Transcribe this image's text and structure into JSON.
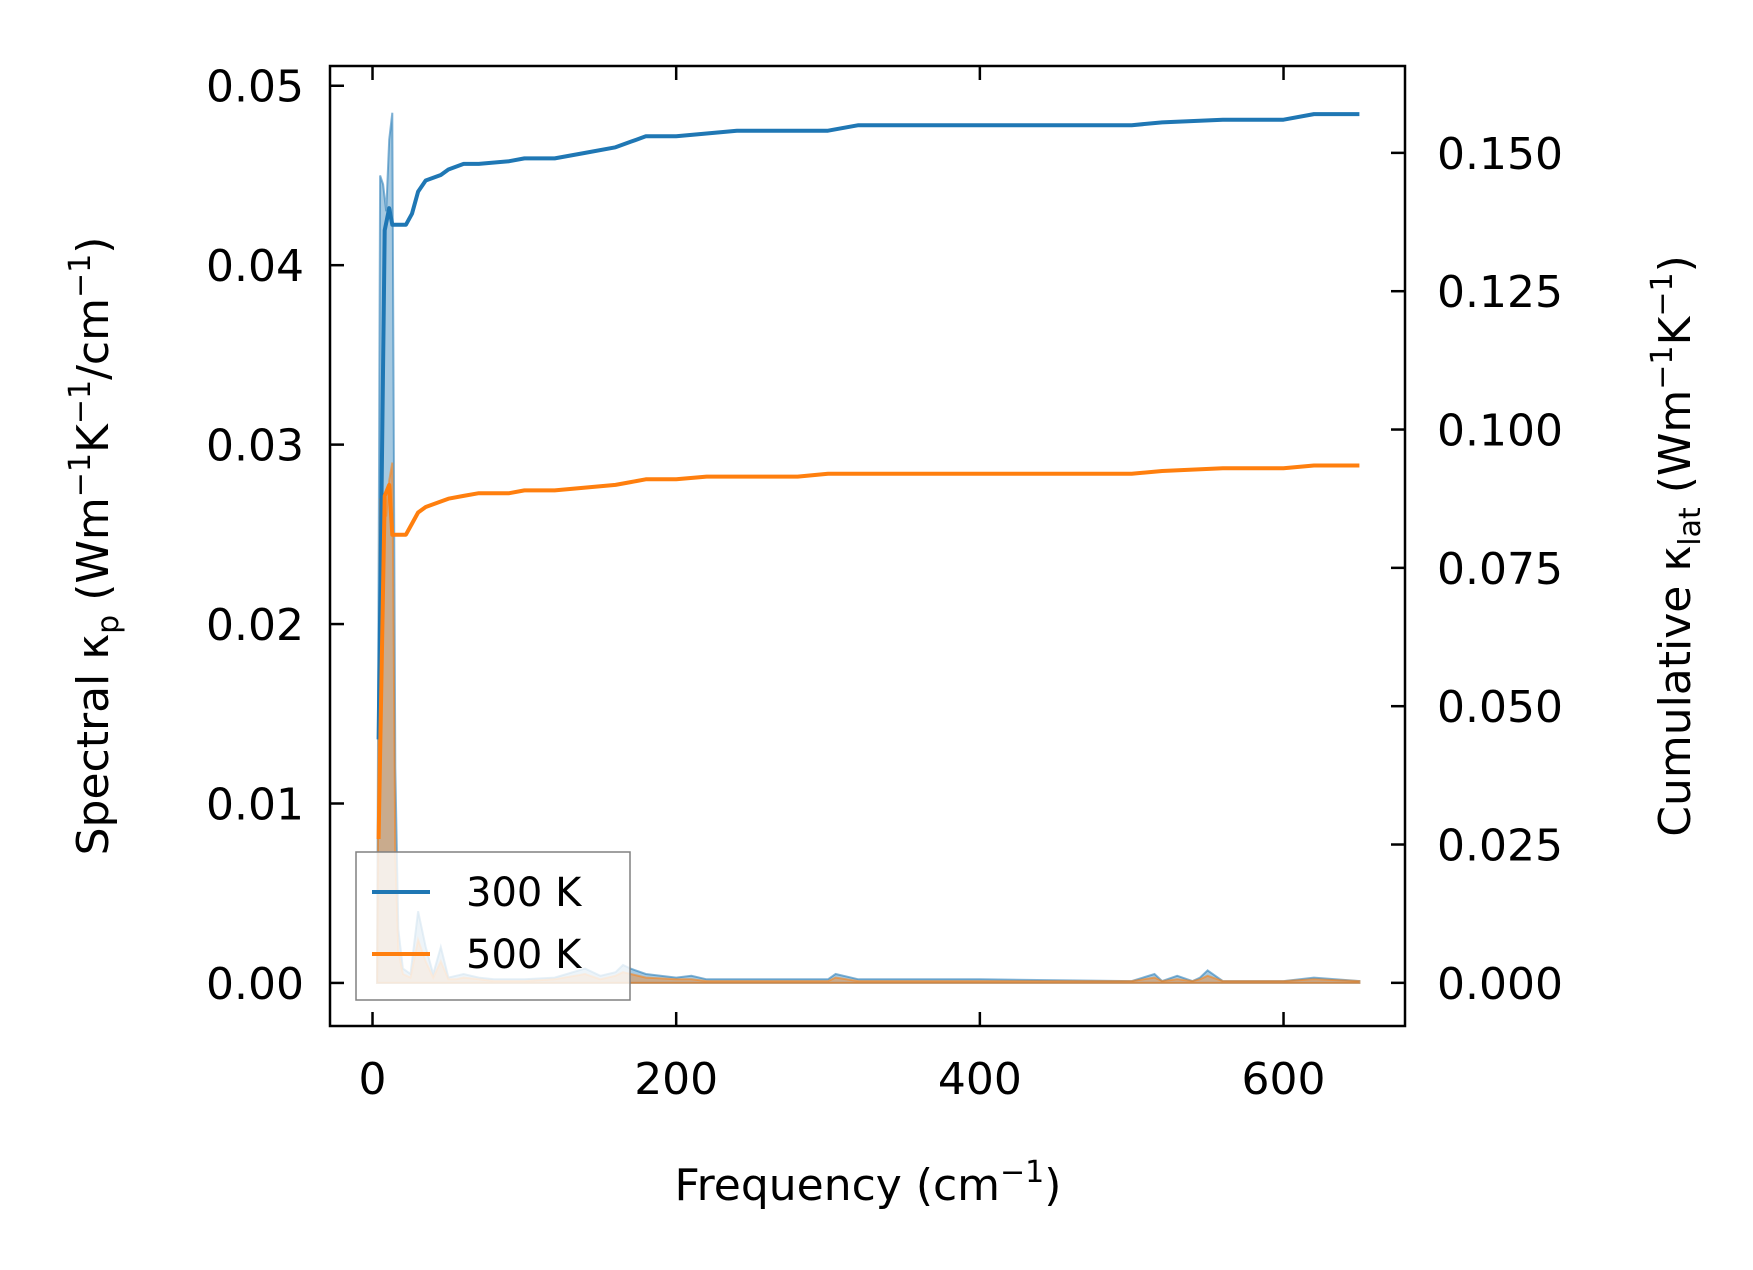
{
  "chart_data": {
    "type": "line",
    "xlabel_main": "Frequency (cm",
    "xlabel_sup": "−1",
    "xlabel_end": ")",
    "ylabel_left": {
      "pre": "Spectral κ",
      "sub": "p",
      "mid1": " (Wm",
      "sup1": "−1",
      "mid2": "K",
      "sup2": "−1",
      "mid3": "/cm",
      "sup3": "−1",
      "end": ")"
    },
    "ylabel_right": {
      "pre": "Cumulative κ",
      "sub": "lat",
      "mid1": " (Wm",
      "sup1": "−1",
      "mid2": "K",
      "sup2": "−1",
      "end": ")"
    },
    "xlim": [
      -28,
      680
    ],
    "ylim_left": [
      -0.0024,
      0.0511
    ],
    "ylim_right": [
      -0.0078,
      0.1657
    ],
    "xticks": [
      0,
      200,
      400,
      600
    ],
    "xtick_labels": [
      "0",
      "200",
      "400",
      "600"
    ],
    "yticks_left": [
      0.0,
      0.01,
      0.02,
      0.03,
      0.04,
      0.05
    ],
    "ytick_labels_left": [
      "0.00",
      "0.01",
      "0.02",
      "0.03",
      "0.04",
      "0.05"
    ],
    "yticks_right": [
      0.0,
      0.025,
      0.05,
      0.075,
      0.1,
      0.125,
      0.15
    ],
    "ytick_labels_right": [
      "0.000",
      "0.025",
      "0.050",
      "0.075",
      "0.100",
      "0.125",
      "0.150"
    ],
    "legend_position": "lower-left",
    "series": [
      {
        "name": "300 K",
        "color": "#1f77b4",
        "cumulative": {
          "x": [
            4,
            8,
            11,
            13,
            15,
            22,
            26,
            30,
            35,
            45,
            50,
            60,
            70,
            90,
            100,
            120,
            140,
            160,
            170,
            180,
            200,
            220,
            240,
            280,
            300,
            320,
            500,
            520,
            560,
            600,
            620,
            650
          ],
          "y": [
            0.044,
            0.136,
            0.14,
            0.137,
            0.137,
            0.137,
            0.139,
            0.143,
            0.145,
            0.146,
            0.147,
            0.148,
            0.148,
            0.1485,
            0.149,
            0.149,
            0.15,
            0.151,
            0.152,
            0.153,
            0.153,
            0.1535,
            0.154,
            0.154,
            0.154,
            0.155,
            0.155,
            0.1555,
            0.156,
            0.156,
            0.157,
            0.157
          ]
        },
        "spectral": {
          "x": [
            3,
            5,
            7,
            9,
            11,
            13,
            15,
            17,
            20,
            25,
            30,
            35,
            40,
            45,
            50,
            55,
            60,
            70,
            80,
            100,
            120,
            140,
            150,
            160,
            165,
            170,
            180,
            200,
            210,
            220,
            250,
            300,
            305,
            320,
            400,
            500,
            515,
            520,
            530,
            540,
            545,
            550,
            560,
            600,
            620,
            650
          ],
          "y": [
            0.0,
            0.045,
            0.0445,
            0.043,
            0.047,
            0.0485,
            0.012,
            0.003,
            0.0008,
            0.0005,
            0.004,
            0.002,
            0.0005,
            0.002,
            0.0003,
            0.0004,
            0.0005,
            0.0003,
            0.0002,
            0.0002,
            0.0003,
            0.0008,
            0.0004,
            0.0006,
            0.001,
            0.0008,
            0.0005,
            0.0003,
            0.0004,
            0.0002,
            0.0002,
            0.0002,
            0.0005,
            0.0002,
            0.0002,
            0.0001,
            0.0005,
            0.0001,
            0.0004,
            0.0001,
            0.0003,
            0.0007,
            0.0001,
            0.0001,
            0.0003,
            0.0001
          ]
        }
      },
      {
        "name": "500 K",
        "color": "#ff7f0e",
        "cumulative": {
          "x": [
            4,
            8,
            11,
            13,
            15,
            22,
            26,
            30,
            35,
            45,
            50,
            60,
            70,
            90,
            100,
            120,
            140,
            160,
            170,
            180,
            200,
            220,
            240,
            280,
            300,
            320,
            500,
            520,
            560,
            600,
            620,
            650
          ],
          "y": [
            0.026,
            0.088,
            0.09,
            0.081,
            0.081,
            0.081,
            0.083,
            0.085,
            0.086,
            0.087,
            0.0875,
            0.088,
            0.0885,
            0.0885,
            0.089,
            0.089,
            0.0895,
            0.09,
            0.0905,
            0.091,
            0.091,
            0.0915,
            0.0915,
            0.0915,
            0.092,
            0.092,
            0.092,
            0.0925,
            0.093,
            0.093,
            0.0935,
            0.0935
          ]
        },
        "spectral": {
          "x": [
            3,
            5,
            7,
            9,
            11,
            13,
            15,
            17,
            20,
            25,
            30,
            35,
            40,
            45,
            50,
            55,
            60,
            70,
            80,
            100,
            120,
            140,
            150,
            160,
            165,
            170,
            180,
            200,
            210,
            220,
            250,
            300,
            305,
            320,
            400,
            500,
            515,
            520,
            530,
            540,
            545,
            550,
            560,
            600,
            620,
            650
          ],
          "y": [
            0.0,
            0.027,
            0.0265,
            0.026,
            0.028,
            0.029,
            0.007,
            0.0018,
            0.0005,
            0.0003,
            0.0024,
            0.0012,
            0.0003,
            0.0012,
            0.0002,
            0.0002,
            0.0003,
            0.0002,
            0.0001,
            0.0001,
            0.0002,
            0.0005,
            0.0002,
            0.0004,
            0.0006,
            0.0005,
            0.0003,
            0.0002,
            0.0002,
            0.0001,
            0.0001,
            0.0001,
            0.0003,
            0.0001,
            0.0001,
            0.0001,
            0.0003,
            0.0001,
            0.0002,
            0.0001,
            0.0002,
            0.0004,
            0.0001,
            0.0001,
            0.0002,
            0.0001
          ]
        }
      }
    ]
  }
}
